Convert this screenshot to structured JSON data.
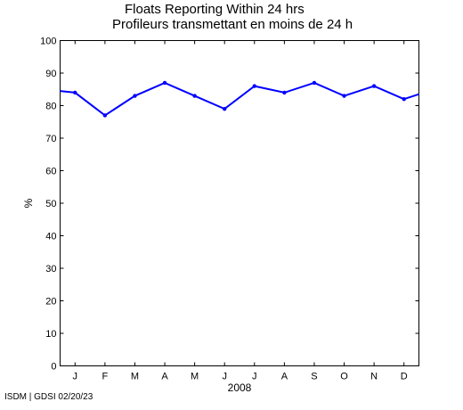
{
  "header": {
    "title_en": "Floats Reporting Within 24 hrs",
    "title_fr": "Profileurs transmettant en moins de 24 h"
  },
  "footer": {
    "credit": "ISDM | GDSI 02/20/23"
  },
  "chart_data": {
    "type": "line",
    "title": "Floats Reporting Within 24 hrs",
    "subtitle": "Profileurs transmettant en moins de 24 h",
    "xlabel": "2008",
    "ylabel": "%",
    "ylim": [
      0,
      100
    ],
    "yticks": [
      0,
      10,
      20,
      30,
      40,
      50,
      60,
      70,
      80,
      90,
      100
    ],
    "categories": [
      "J",
      "F",
      "M",
      "A",
      "M",
      "J",
      "J",
      "A",
      "S",
      "O",
      "N",
      "D"
    ],
    "series": [
      {
        "color": "#0000ff",
        "values": [
          84,
          77,
          83,
          87,
          83,
          79,
          86,
          84,
          87,
          83,
          86,
          82
        ],
        "start_value": 84.5,
        "end_value": 83.5
      }
    ],
    "grid": false,
    "legend": "none"
  }
}
